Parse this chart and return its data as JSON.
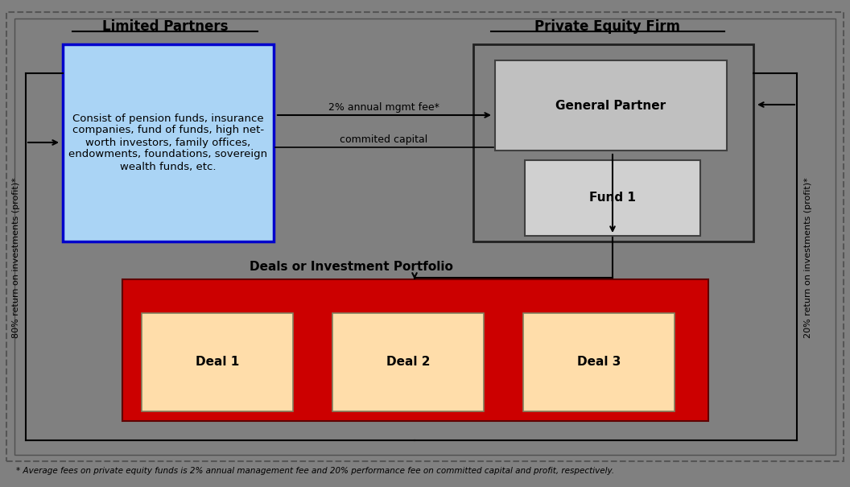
{
  "bg_color": "#808080",
  "title_lp": "Limited Partners",
  "title_pe": "Private Equity Firm",
  "lp_box_color": "#aad4f5",
  "lp_box_edge": "#0000cc",
  "lp_text": "Consist of pension funds, insurance\ncompanies, fund of funds, high net-\nworth investors, family offices,\nendowments, foundations, sovereign\nwealth funds, etc.",
  "gp_box_color": "#c0c0c0",
  "gp_box_edge": "#404040",
  "gp_text": "General Partner",
  "fund_box_color": "#d0d0d0",
  "fund_box_edge": "#404040",
  "fund_text": "Fund 1",
  "pe_outer_edge": "#202020",
  "pe_outer_fill": "#808080",
  "deals_bg_color": "#cc0000",
  "deals_title": "Deals or Investment Portfolio",
  "deal_box_color": "#ffddaa",
  "deal_box_edge": "#808060",
  "deal_labels": [
    "Deal 1",
    "Deal 2",
    "Deal 3"
  ],
  "label_2pct": "2% annual mgmt fee*",
  "label_committed": "commited capital",
  "label_80pct": "80% return on investments (profit)*",
  "label_20pct": "20% return on investments (profit)*",
  "footnote": "* Average fees on private equity funds is 2% annual management fee and 20% performance fee on committed capital and profit, respectively.",
  "arrow_color": "#000000",
  "outer_dashed_color": "#555555"
}
